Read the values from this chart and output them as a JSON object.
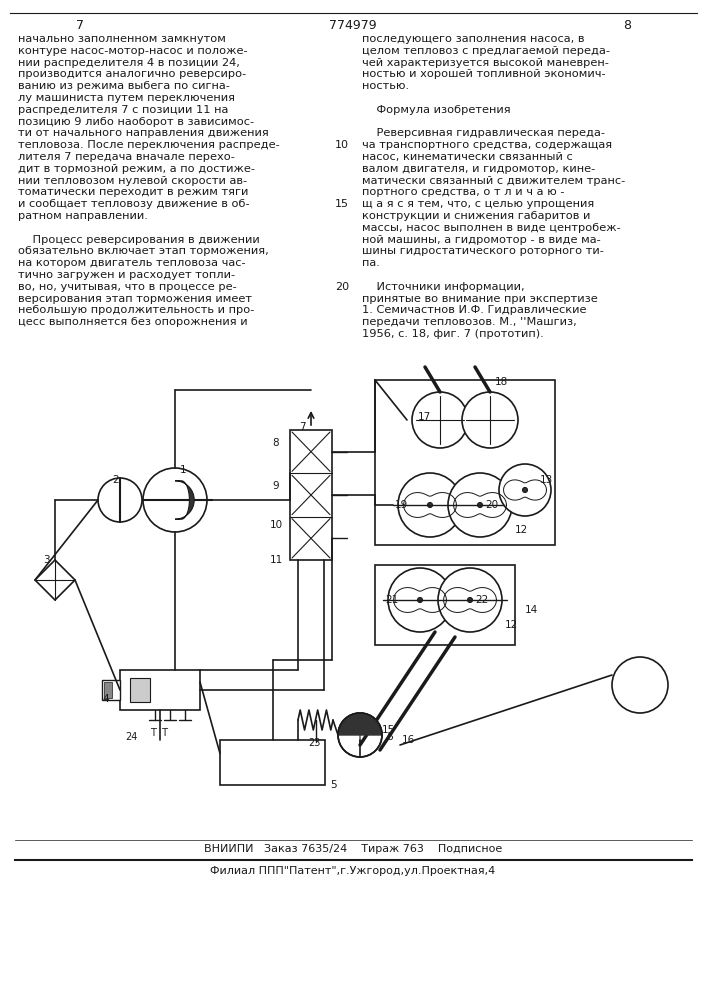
{
  "page_number_left": "7",
  "page_number_center": "774979",
  "page_number_right": "8",
  "bg_color": "#ffffff",
  "text_color": "#1a1a1a",
  "left_col_lines": [
    "начально заполненном замкнутом",
    "контуре насос-мотор-насос и положе-",
    "нии распределителя 4 в позиции 24,",
    "производится аналогично реверсиро-",
    "ванию из режима выбега по сигна-",
    "лу машиниста путем переключения",
    "распределителя 7 с позиции 11 на",
    "позицию 9 либо наоборот в зависимос-",
    "ти от начального направления движения",
    "тепловоза. После переключения распреде-",
    "лителя 7 передача вначале перехо-",
    "дит в тормозной режим, а по достиже-",
    "нии тепловозом нулевой скорости ав-",
    "томатически переходит в режим тяги",
    "и сообщает тепловозу движение в об-",
    "ратном направлении.",
    "",
    "    Процесс реверсирования в движении",
    "обязательно включает этап торможения,",
    "на котором двигатель тепловоза час-",
    "тично загружен и расходует топли-",
    "во, но, учитывая, что в процессе ре-",
    "версирования этап торможения имеет",
    "небольшую продолжительность и про-",
    "цесс выполняется без опорожнения и"
  ],
  "right_col_lines": [
    "последующего заполнения насоса, в",
    "целом тепловоз с предлагаемой переда-",
    "чей характеризуется высокой маневрен-",
    "ностью и хорошей топливной экономич-",
    "ностью.",
    "",
    "    Формула изобретения",
    "",
    "    Реверсивная гидравлическая переда-",
    "ча транспортного средства, содержащая",
    "насос, кинематически связанный с",
    "валом двигателя, и гидромотор, кине-",
    "матически связанный с движителем транс-",
    "портного средства, о т л и ч а ю -",
    "щ а я с я тем, что, с целью упрощения",
    "конструкции и снижения габаритов и",
    "массы, насос выполнен в виде центробеж-",
    "ной машины, а гидромотор - в виде ма-",
    "шины гидростатического роторного ти-",
    "па.",
    "",
    "    Источники информации,",
    "принятые во внимание при экспертизе",
    "1. Семичастнов И.Ф. Гидравлические",
    "передачи тепловозов. М., ''Машгиз,",
    "1956, с. 18, фиг. 7 (прототип)."
  ],
  "right_col_line_numbers": [
    "",
    "",
    "",
    "",
    "",
    "",
    "",
    "",
    "",
    "10",
    "",
    "",
    "",
    "",
    "15",
    "",
    "",
    "",
    "",
    "",
    "",
    "20",
    "",
    "",
    ""
  ],
  "footer_line1": "ВНИИПИ   Заказ 7635/24    Тираж 763    Подписное",
  "footer_line2": "Филиал ППП\"Патент\",г.Ужгород,ул.Проектная,4"
}
